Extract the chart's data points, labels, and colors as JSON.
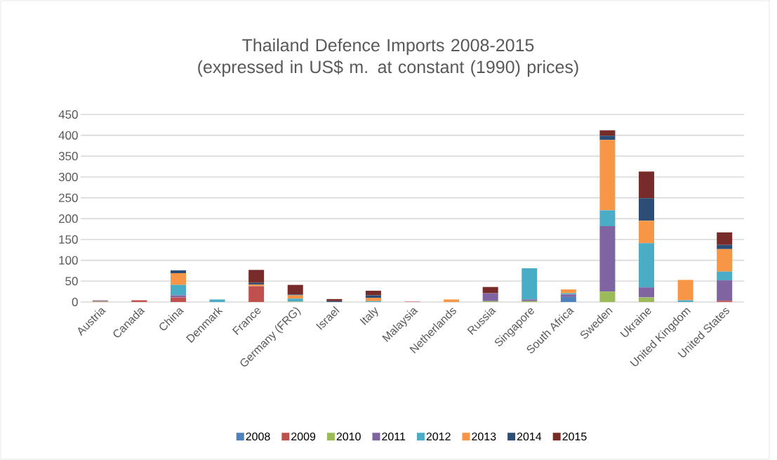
{
  "chart_data": {
    "type": "bar",
    "title": "Thailand Defence Imports 2008-2015 (expressed in US$ m. at constant (1990) prices)",
    "categories": [
      "Austria",
      "Canada",
      "China",
      "Denmark",
      "France",
      "Germany (FRG)",
      "Israel",
      "Italy",
      "Malaysia",
      "Netherlands",
      "Russia",
      "Singapore",
      "South Africa",
      "Sweden",
      "Ukraine",
      "United Kingdom",
      "United States"
    ],
    "stacked": true,
    "ylim": [
      0,
      450
    ],
    "yticks": [
      0,
      50,
      100,
      150,
      200,
      250,
      300,
      350,
      400,
      450
    ],
    "grid": "y",
    "legend": "bottom",
    "series": [
      {
        "name": "2008",
        "color": "#4f81bd",
        "values": [
          null,
          null,
          null,
          null,
          null,
          null,
          null,
          null,
          null,
          null,
          null,
          null,
          12,
          null,
          null,
          null,
          null
        ]
      },
      {
        "name": "2009",
        "color": "#c0504d",
        "values": [
          1,
          4,
          11,
          null,
          38,
          null,
          null,
          null,
          1,
          null,
          null,
          null,
          null,
          null,
          null,
          null,
          3
        ]
      },
      {
        "name": "2010",
        "color": "#9bbb59",
        "values": [
          1,
          null,
          null,
          null,
          null,
          1,
          null,
          null,
          null,
          null,
          2,
          2,
          null,
          25,
          11,
          null,
          null
        ]
      },
      {
        "name": "2011",
        "color": "#8064a2",
        "values": [
          2,
          null,
          5,
          null,
          null,
          null,
          null,
          null,
          null,
          null,
          19,
          4,
          6,
          157,
          24,
          null,
          49
        ]
      },
      {
        "name": "2012",
        "color": "#4bacc6",
        "values": [
          null,
          null,
          25,
          6,
          null,
          7,
          null,
          2,
          null,
          null,
          null,
          75,
          3,
          38,
          106,
          4,
          21
        ]
      },
      {
        "name": "2013",
        "color": "#f79646",
        "values": [
          null,
          null,
          28,
          null,
          4,
          8,
          null,
          8,
          null,
          6,
          null,
          null,
          9,
          169,
          54,
          49,
          54
        ]
      },
      {
        "name": "2014",
        "color": "#2c4d75",
        "values": [
          null,
          null,
          7,
          null,
          4,
          2,
          2,
          6,
          null,
          null,
          null,
          null,
          null,
          10,
          54,
          null,
          10
        ]
      },
      {
        "name": "2015",
        "color": "#772c2a",
        "values": [
          null,
          null,
          null,
          null,
          31,
          23,
          5,
          11,
          null,
          null,
          15,
          null,
          null,
          13,
          64,
          null,
          30
        ]
      }
    ]
  }
}
